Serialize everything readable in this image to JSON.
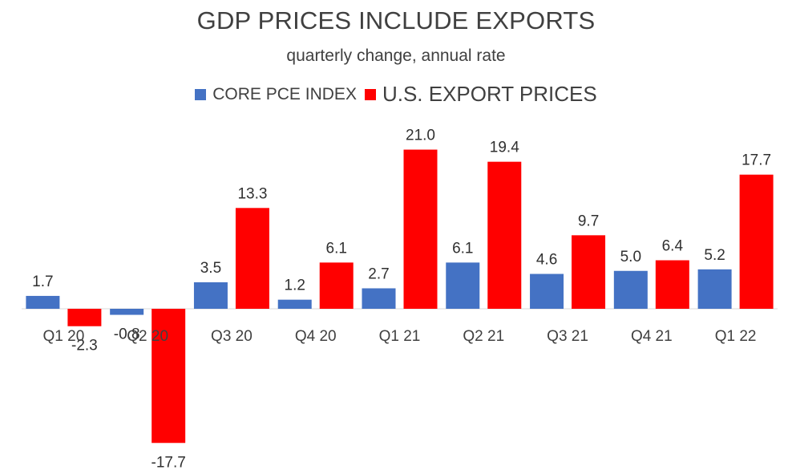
{
  "chart_data": {
    "type": "bar",
    "title": "GDP PRICES INCLUDE EXPORTS",
    "subtitle": "quarterly change, annual rate",
    "categories": [
      "Q1 20",
      "Q2 20",
      "Q3 20",
      "Q4 20",
      "Q1 21",
      "Q2 21",
      "Q3 21",
      "Q4 21",
      "Q1 22"
    ],
    "series": [
      {
        "name": "CORE PCE INDEX",
        "color": "#4472C4",
        "values": [
          1.7,
          -0.8,
          3.5,
          1.2,
          2.7,
          6.1,
          4.6,
          5.0,
          5.2
        ],
        "labels": [
          "1.7",
          "-0.8",
          "3.5",
          "1.2",
          "2.7",
          "6.1",
          "4.6",
          "5.0",
          "5.2"
        ]
      },
      {
        "name": "U.S. EXPORT PRICES",
        "color": "#FF0000",
        "values": [
          -2.3,
          -17.7,
          13.3,
          6.1,
          21.0,
          19.4,
          9.7,
          6.4,
          17.7
        ],
        "labels": [
          "-2.3",
          "-17.7",
          "13.3",
          "6.1",
          "21.0",
          "19.4",
          "9.7",
          "6.4",
          "17.7"
        ]
      }
    ],
    "xlabel": "",
    "ylabel": "",
    "ylim": [
      -18,
      22
    ],
    "grid": false,
    "legend": "top-center"
  }
}
